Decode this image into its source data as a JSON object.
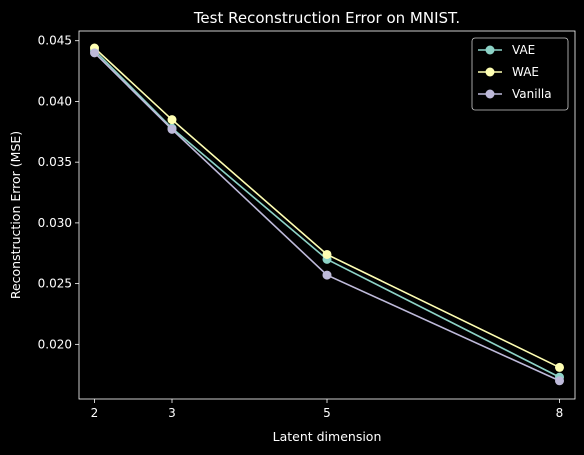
{
  "chart_data": {
    "type": "line",
    "title": "Test Reconstruction Error on MNIST.",
    "xlabel": "Latent dimension",
    "ylabel": "Reconstruction Error (MSE)",
    "x": [
      2,
      3,
      5,
      8
    ],
    "xticks": [
      2,
      3,
      5,
      8
    ],
    "xtick_labels": [
      "2",
      "3",
      "5",
      "8"
    ],
    "xlim": [
      1.8,
      8.2
    ],
    "yticks": [
      0.02,
      0.025,
      0.03,
      0.035,
      0.04,
      0.045
    ],
    "ytick_labels": [
      "0.020",
      "0.025",
      "0.030",
      "0.035",
      "0.040",
      "0.045"
    ],
    "ylim": [
      0.0155,
      0.0458
    ],
    "grid": false,
    "legend_position": "top-right",
    "series": [
      {
        "name": "VAE",
        "color": "#8dd3c7",
        "values": [
          0.0442,
          0.0378,
          0.027,
          0.0173
        ]
      },
      {
        "name": "WAE",
        "color": "#ffffb3",
        "values": [
          0.0444,
          0.0385,
          0.0274,
          0.0181
        ]
      },
      {
        "name": "Vanilla",
        "color": "#bebada",
        "values": [
          0.044,
          0.0377,
          0.0257,
          0.017
        ]
      }
    ]
  }
}
